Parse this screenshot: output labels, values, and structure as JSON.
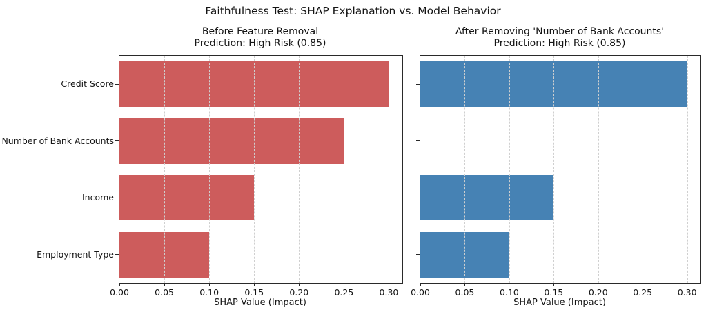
{
  "figure": {
    "suptitle": "Faithfulness Test: SHAP Explanation vs. Model Behavior"
  },
  "colors": {
    "background": "#FFFFFF",
    "text": "#151515",
    "spine": "#2A2A2A",
    "grid": "#CFCFCF",
    "before_bars": "#CD5C5C",
    "after_bars": "#4682B4"
  },
  "chart_data": [
    {
      "type": "bar",
      "orientation": "horizontal",
      "title": "Before Feature Removal\nPrediction: High Risk (0.85)",
      "categories": [
        "Credit Score",
        "Number of Bank Accounts",
        "Income",
        "Employment Type"
      ],
      "values": [
        0.3,
        0.25,
        0.15,
        0.1
      ],
      "xlabel": "SHAP Value (Impact)",
      "ylabel": "",
      "xlim": [
        0,
        0.315
      ],
      "xticks": [
        0,
        0.05,
        0.1,
        0.15,
        0.2,
        0.25,
        0.3
      ],
      "xtick_labels": [
        "0.00",
        "0.05",
        "0.10",
        "0.15",
        "0.20",
        "0.25",
        "0.30"
      ],
      "bar_color": "#CD5C5C",
      "grid": {
        "axis": "x",
        "style": "dashed",
        "color": "#CFCFCF",
        "over_bars": true
      },
      "legend": "none",
      "y_tick_labels_visible": true
    },
    {
      "type": "bar",
      "orientation": "horizontal",
      "title": "After Removing 'Number of Bank Accounts'\nPrediction: High Risk (0.85)",
      "categories": [
        "Credit Score",
        "Number of Bank Accounts",
        "Income",
        "Employment Type"
      ],
      "values": [
        0.3,
        0,
        0.15,
        0.1
      ],
      "xlabel": "SHAP Value (Impact)",
      "ylabel": "",
      "xlim": [
        0,
        0.315
      ],
      "xticks": [
        0,
        0.05,
        0.1,
        0.15,
        0.2,
        0.25,
        0.3
      ],
      "xtick_labels": [
        "0.00",
        "0.05",
        "0.10",
        "0.15",
        "0.20",
        "0.25",
        "0.30"
      ],
      "bar_color": "#4682B4",
      "grid": {
        "axis": "x",
        "style": "dashed",
        "color": "#CFCFCF",
        "over_bars": true
      },
      "legend": "none",
      "y_tick_labels_visible": false
    }
  ]
}
